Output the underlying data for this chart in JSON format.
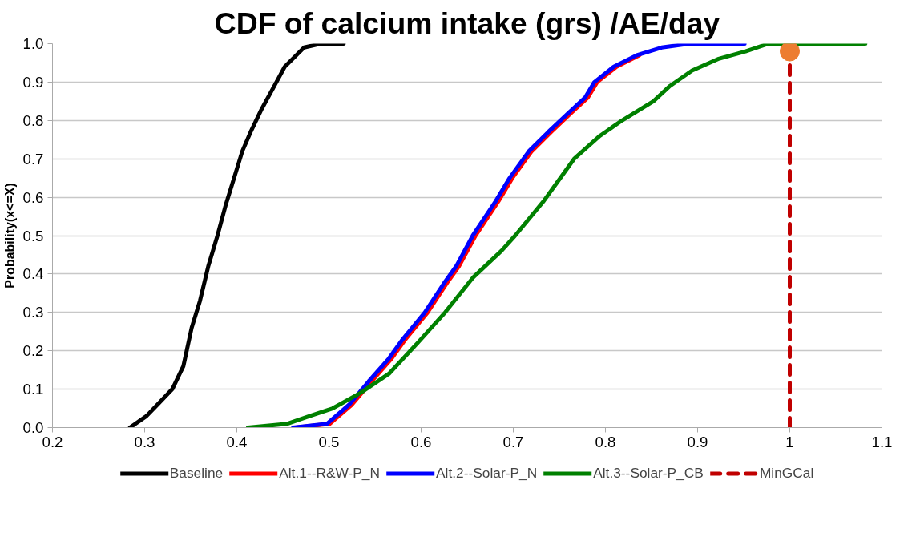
{
  "chart_data": {
    "type": "line",
    "title": "CDF of calcium intake (grs) /AE/day",
    "ylabel": "Probability(x<=X)",
    "xlim": [
      0.2,
      1.1
    ],
    "xticks": [
      0.2,
      0.3,
      0.4,
      0.5,
      0.6,
      0.7,
      0.8,
      0.9,
      1,
      1.1
    ],
    "ylim": [
      0,
      1
    ],
    "yticks": [
      {
        "value": 0,
        "label": "0.0"
      },
      0.1,
      0.2,
      0.3,
      0.4,
      0.5,
      0.6,
      0.7,
      0.8,
      0.9,
      {
        "value": 1,
        "label": "1.0"
      }
    ],
    "grid": "y",
    "legend": "bottom",
    "marker": "none",
    "line_style": "solid",
    "series": [
      {
        "name": "Baseline",
        "color": "#000000",
        "x": [
          0.284,
          0.302,
          0.314,
          0.33,
          0.342,
          0.351,
          0.36,
          0.369,
          0.379,
          0.388,
          0.397,
          0.406,
          0.415,
          0.427,
          0.443,
          0.452,
          0.473,
          0.491,
          0.516
        ],
        "values": [
          0.0,
          0.03,
          0.06,
          0.1,
          0.16,
          0.26,
          0.33,
          0.42,
          0.5,
          0.58,
          0.65,
          0.72,
          0.77,
          0.83,
          0.9,
          0.94,
          0.99,
          1.0,
          1.0
        ]
      },
      {
        "name": "Alt.1--R&W-P_N",
        "color": "#ff0000",
        "x": [
          0.464,
          0.501,
          0.525,
          0.546,
          0.568,
          0.583,
          0.607,
          0.629,
          0.641,
          0.659,
          0.684,
          0.699,
          0.72,
          0.741,
          0.763,
          0.781,
          0.791,
          0.812,
          0.837
        ],
        "values": [
          0.0,
          0.01,
          0.06,
          0.12,
          0.18,
          0.23,
          0.3,
          0.38,
          0.42,
          0.5,
          0.59,
          0.65,
          0.72,
          0.77,
          0.82,
          0.86,
          0.9,
          0.94,
          0.97
        ]
      },
      {
        "name": "Alt.2--Solar-P_N",
        "color": "#0000ff",
        "x": [
          0.461,
          0.498,
          0.522,
          0.543,
          0.565,
          0.58,
          0.604,
          0.626,
          0.638,
          0.656,
          0.681,
          0.696,
          0.717,
          0.738,
          0.76,
          0.778,
          0.788,
          0.809,
          0.834,
          0.861,
          0.891,
          0.951
        ],
        "values": [
          0.0,
          0.01,
          0.06,
          0.12,
          0.18,
          0.23,
          0.3,
          0.38,
          0.42,
          0.5,
          0.59,
          0.65,
          0.72,
          0.77,
          0.82,
          0.86,
          0.9,
          0.94,
          0.97,
          0.99,
          1.0,
          1.0
        ]
      },
      {
        "name": "Alt.3--Solar-P_CB",
        "color": "#008000",
        "x": [
          0.412,
          0.455,
          0.479,
          0.504,
          0.534,
          0.565,
          0.596,
          0.626,
          0.656,
          0.687,
          0.702,
          0.733,
          0.748,
          0.766,
          0.794,
          0.818,
          0.852,
          0.87,
          0.894,
          0.922,
          0.952,
          0.977,
          1.082
        ],
        "values": [
          0.0,
          0.01,
          0.03,
          0.05,
          0.09,
          0.14,
          0.22,
          0.3,
          0.39,
          0.46,
          0.5,
          0.59,
          0.64,
          0.7,
          0.76,
          0.8,
          0.85,
          0.89,
          0.93,
          0.96,
          0.98,
          1.0,
          1.0
        ]
      },
      {
        "name": "MinGCal",
        "color": "#c00000",
        "line_style": "dashed",
        "x": [
          1,
          1
        ],
        "values": [
          0,
          0.98
        ]
      },
      {
        "type": "scatter",
        "marker": "circle",
        "color": "#ed7d31",
        "x": [
          1
        ],
        "values": [
          0.98
        ]
      }
    ]
  }
}
